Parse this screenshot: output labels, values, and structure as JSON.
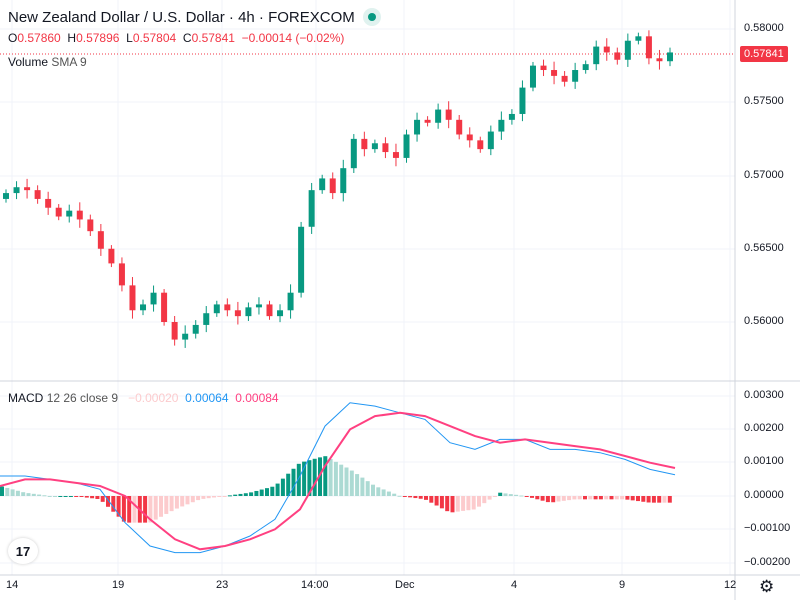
{
  "header": {
    "title": "New Zealand Dollar / U.S. Dollar · 4h · FOREXCOM",
    "status": "market-open"
  },
  "ohlc": {
    "o_label": "O",
    "o": "0.57860",
    "h_label": "H",
    "h": "0.57896",
    "l_label": "L",
    "l": "0.57804",
    "c_label": "C",
    "c": "0.57841",
    "change": "−0.00014 (−0.02%)"
  },
  "volume": {
    "label": "Volume",
    "params": "SMA 9"
  },
  "macd": {
    "label": "MACD",
    "params": "12 26 close 9",
    "hist_value": "−0.00020",
    "macd_value": "0.00064",
    "signal_value": "0.00084"
  },
  "price_axis": [
    "0.58000",
    "0.57500",
    "0.57000",
    "0.56500",
    "0.56000"
  ],
  "macd_axis": [
    "0.00300",
    "0.00200",
    "0.00100",
    "0.00000",
    "−0.00100",
    "−0.00200"
  ],
  "time_axis": [
    "14",
    "19",
    "23",
    "14:00",
    "Dec",
    "4",
    "9",
    "12"
  ],
  "last_price": "0.57841",
  "colors": {
    "up": "#089981",
    "down": "#f23645",
    "macd": "#2196f3",
    "signal": "#ff4081",
    "hist_up": "#acdad3",
    "hist_down": "#fccbcd"
  },
  "chart_data": {
    "type": "candlestick",
    "price_range": [
      0.5575,
      0.5815
    ],
    "closes": [
      0.5688,
      0.5692,
      0.569,
      0.5684,
      0.5678,
      0.5672,
      0.5676,
      0.567,
      0.5662,
      0.565,
      0.564,
      0.5625,
      0.5608,
      0.5612,
      0.562,
      0.56,
      0.5588,
      0.5592,
      0.5598,
      0.5606,
      0.5612,
      0.5608,
      0.5604,
      0.561,
      0.5612,
      0.5604,
      0.5608,
      0.562,
      0.5665,
      0.569,
      0.5698,
      0.5688,
      0.5705,
      0.5725,
      0.5718,
      0.5722,
      0.5716,
      0.5712,
      0.5728,
      0.5738,
      0.5736,
      0.5745,
      0.5738,
      0.5728,
      0.5724,
      0.5718,
      0.573,
      0.5738,
      0.5742,
      0.576,
      0.5775,
      0.5772,
      0.5768,
      0.5764,
      0.5772,
      0.5776,
      0.5788,
      0.5784,
      0.5779,
      0.5792,
      0.5795,
      0.578,
      0.5778,
      0.5784
    ],
    "macd_range": [
      -0.0022,
      0.0032
    ],
    "macd": [
      0.0006,
      0.0006,
      0.0005,
      0.0004,
      0.0002,
      -0.0008,
      -0.0015,
      -0.0017,
      -0.0017,
      -0.0015,
      -0.0012,
      -0.0007,
      0.0006,
      0.0021,
      0.0028,
      0.0027,
      0.0025,
      0.0023,
      0.0016,
      0.0014,
      0.0017,
      0.0017,
      0.0014,
      0.0014,
      0.0013,
      0.0011,
      0.0008,
      0.00064
    ],
    "signal": [
      0.0003,
      0.0005,
      0.0005,
      0.0004,
      0.0003,
      0.0,
      -0.0007,
      -0.0013,
      -0.0016,
      -0.0015,
      -0.0013,
      -0.001,
      -0.0004,
      0.0009,
      0.002,
      0.0024,
      0.0025,
      0.0024,
      0.0021,
      0.0018,
      0.0016,
      0.0017,
      0.0016,
      0.0015,
      0.0014,
      0.0012,
      0.001,
      0.00084
    ]
  }
}
